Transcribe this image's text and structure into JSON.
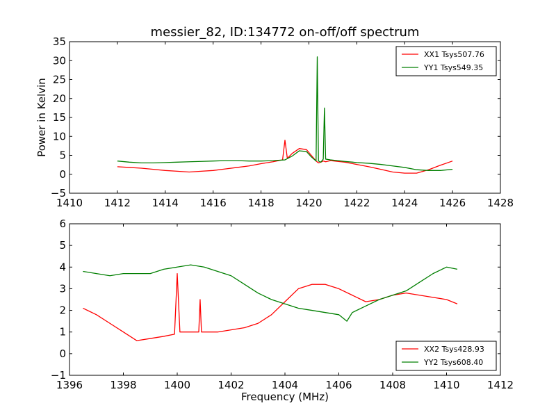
{
  "colors": {
    "series_red": "#ff0000",
    "series_green": "#007f00",
    "frame": "#000000",
    "background": "#ffffff"
  },
  "chart_data": [
    {
      "type": "line",
      "title": "messier_82, ID:134772 on-off/off spectrum",
      "xlabel": "",
      "ylabel": "Power in Kelvin",
      "xlim": [
        1410,
        1428
      ],
      "ylim": [
        -5,
        35
      ],
      "xticks": [
        "1410",
        "1412",
        "1414",
        "1416",
        "1418",
        "1420",
        "1422",
        "1424",
        "1426",
        "1428"
      ],
      "yticks": [
        "−5",
        "0",
        "5",
        "10",
        "15",
        "20",
        "25",
        "30",
        "35"
      ],
      "grid": false,
      "legend_position": "top-right",
      "series": [
        {
          "name": "XX1 Tsys507.76",
          "color": "#ff0000",
          "x": [
            1412,
            1412.5,
            1413,
            1413.5,
            1414,
            1414.5,
            1415,
            1415.5,
            1416,
            1416.5,
            1417,
            1417.5,
            1418,
            1418.5,
            1418.9,
            1419.0,
            1419.1,
            1419.3,
            1419.6,
            1419.9,
            1420.1,
            1420.3,
            1420.4,
            1420.5,
            1420.6,
            1420.7,
            1420.9,
            1421.2,
            1421.5,
            1422,
            1422.5,
            1423,
            1423.5,
            1424,
            1424.5,
            1425,
            1425.5,
            1426
          ],
          "y": [
            2.0,
            1.8,
            1.6,
            1.3,
            1.0,
            0.8,
            0.6,
            0.8,
            1.0,
            1.4,
            1.8,
            2.2,
            2.8,
            3.3,
            3.8,
            9.0,
            4.2,
            5.5,
            6.8,
            6.5,
            5.0,
            3.5,
            3.0,
            3.2,
            3.5,
            3.3,
            3.6,
            3.4,
            3.2,
            2.6,
            2.0,
            1.3,
            0.6,
            0.3,
            0.3,
            1.2,
            2.4,
            3.5
          ]
        },
        {
          "name": "YY1 Tsys549.35",
          "color": "#007f00",
          "x": [
            1412,
            1412.5,
            1413,
            1413.5,
            1414,
            1414.5,
            1415,
            1415.5,
            1416,
            1416.5,
            1417,
            1417.5,
            1418,
            1418.5,
            1419.0,
            1419.3,
            1419.6,
            1419.9,
            1420.1,
            1420.3,
            1420.35,
            1420.4,
            1420.5,
            1420.6,
            1420.65,
            1420.7,
            1420.9,
            1421.2,
            1421.5,
            1422,
            1422.5,
            1423,
            1423.5,
            1424,
            1424.5,
            1425,
            1425.5,
            1426
          ],
          "y": [
            3.5,
            3.2,
            3.0,
            3.0,
            3.1,
            3.2,
            3.3,
            3.4,
            3.5,
            3.6,
            3.6,
            3.5,
            3.5,
            3.6,
            3.8,
            4.8,
            6.2,
            6.0,
            4.6,
            3.5,
            31.0,
            3.5,
            3.2,
            4.0,
            17.5,
            4.0,
            3.8,
            3.6,
            3.4,
            3.1,
            2.9,
            2.6,
            2.2,
            1.8,
            1.2,
            1.0,
            1.0,
            1.3
          ]
        }
      ]
    },
    {
      "type": "line",
      "title": "",
      "xlabel": "Frequency (MHz)",
      "ylabel": "",
      "xlim": [
        1396,
        1412
      ],
      "ylim": [
        -1,
        6
      ],
      "xticks": [
        "1396",
        "1398",
        "1400",
        "1402",
        "1404",
        "1406",
        "1408",
        "1410",
        "1412"
      ],
      "yticks": [
        "−1",
        "0",
        "1",
        "2",
        "3",
        "4",
        "5",
        "6"
      ],
      "grid": false,
      "legend_position": "bottom-right",
      "series": [
        {
          "name": "XX2 Tsys428.93",
          "color": "#ff0000",
          "x": [
            1396.5,
            1397,
            1397.5,
            1398,
            1398.5,
            1399,
            1399.5,
            1399.9,
            1400.0,
            1400.1,
            1400.5,
            1400.8,
            1400.85,
            1400.9,
            1401.5,
            1402,
            1402.5,
            1403,
            1403.5,
            1404,
            1404.5,
            1405,
            1405.5,
            1406,
            1406.5,
            1407,
            1407.5,
            1408,
            1408.5,
            1409,
            1409.5,
            1410,
            1410.4
          ],
          "y": [
            2.1,
            1.8,
            1.4,
            1.0,
            0.6,
            0.7,
            0.8,
            0.9,
            3.7,
            1.0,
            1.0,
            1.0,
            2.5,
            1.0,
            1.0,
            1.1,
            1.2,
            1.4,
            1.8,
            2.4,
            3.0,
            3.2,
            3.2,
            3.0,
            2.7,
            2.4,
            2.5,
            2.7,
            2.8,
            2.7,
            2.6,
            2.5,
            2.3
          ]
        },
        {
          "name": "YY2 Tsys608.40",
          "color": "#007f00",
          "x": [
            1396.5,
            1397,
            1397.5,
            1398,
            1398.5,
            1399,
            1399.5,
            1400,
            1400.5,
            1401,
            1401.5,
            1402,
            1402.5,
            1403,
            1403.5,
            1404,
            1404.5,
            1405,
            1405.5,
            1406,
            1406.3,
            1406.5,
            1407,
            1407.5,
            1408,
            1408.5,
            1409,
            1409.5,
            1410,
            1410.4
          ],
          "y": [
            3.8,
            3.7,
            3.6,
            3.7,
            3.7,
            3.7,
            3.9,
            4.0,
            4.1,
            4.0,
            3.8,
            3.6,
            3.2,
            2.8,
            2.5,
            2.3,
            2.1,
            2.0,
            1.9,
            1.8,
            1.5,
            1.9,
            2.2,
            2.5,
            2.7,
            2.9,
            3.3,
            3.7,
            4.0,
            3.9
          ]
        }
      ]
    }
  ]
}
